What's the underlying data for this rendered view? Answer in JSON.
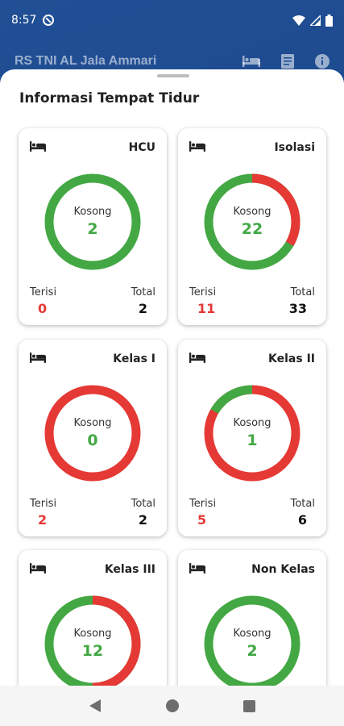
{
  "status_bar": {
    "time": "8:57"
  },
  "app_bar": {
    "title": "RS TNI AL Jala Ammari"
  },
  "sheet": {
    "title": "Informasi Tempat Tidur"
  },
  "labels": {
    "kosong": "Kosong",
    "terisi": "Terisi",
    "total": "Total"
  },
  "colors": {
    "available": "#43a843",
    "occupied": "#e53935",
    "header_bg": "#1b4f93"
  },
  "cards": [
    {
      "name": "HCU",
      "kosong": "2",
      "terisi": "0",
      "total": "2"
    },
    {
      "name": "Isolasi",
      "kosong": "22",
      "terisi": "11",
      "total": "33"
    },
    {
      "name": "Kelas I",
      "kosong": "0",
      "terisi": "2",
      "total": "2"
    },
    {
      "name": "Kelas II",
      "kosong": "1",
      "terisi": "5",
      "total": "6"
    },
    {
      "name": "Kelas III",
      "kosong": "12"
    },
    {
      "name": "Non Kelas",
      "kosong": "2"
    }
  ]
}
